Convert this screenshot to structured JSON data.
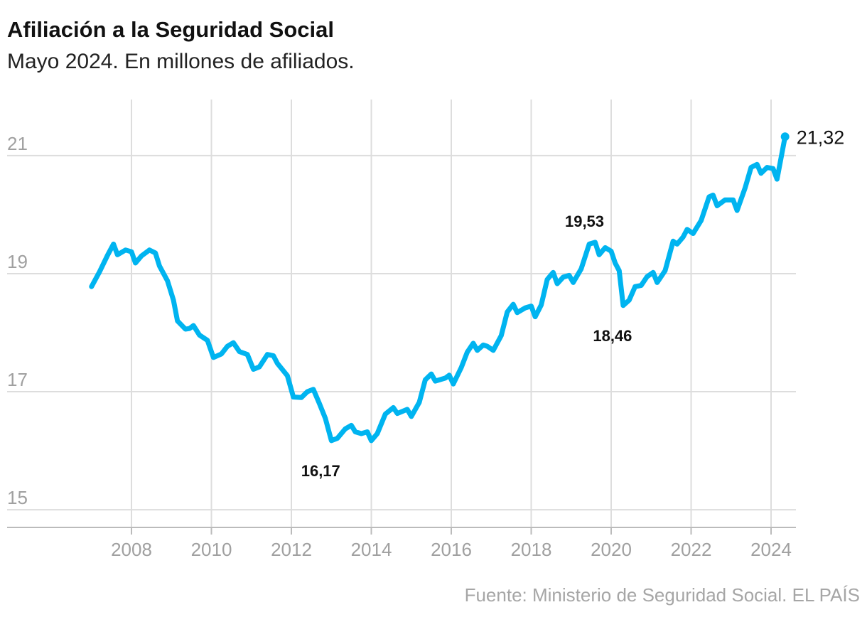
{
  "header": {
    "title": "Afiliación a la Seguridad Social",
    "subtitle": "Mayo 2024. En millones de afiliados."
  },
  "source": "Fuente: Ministerio de Seguridad Social. EL PAÍS",
  "colors": {
    "line": "#00b4f0",
    "grid": "#dddddd",
    "axis": "#bbbbbb",
    "tick_text": "#a0a0a0",
    "annotation_text": "#111111"
  },
  "chart_data": {
    "type": "line",
    "title": "Afiliación a la Seguridad Social",
    "subtitle": "Mayo 2024. En millones de afiliados.",
    "xlabel": "",
    "ylabel": "",
    "xlim": [
      2006.3,
      2024.7
    ],
    "ylim": [
      14.7,
      21.95
    ],
    "x_ticks": [
      2008,
      2010,
      2012,
      2014,
      2016,
      2018,
      2020,
      2022,
      2024
    ],
    "x_tick_labels": [
      "2008",
      "2010",
      "2012",
      "2014",
      "2016",
      "2018",
      "2020",
      "2022",
      "2024"
    ],
    "y_ticks": [
      15,
      17,
      19,
      21
    ],
    "y_tick_labels": [
      "15",
      "17",
      "19",
      "21"
    ],
    "grid": true,
    "legend": "none",
    "series": [
      {
        "points": [
          [
            2007.0,
            18.78
          ],
          [
            2007.2,
            19.03
          ],
          [
            2007.4,
            19.31
          ],
          [
            2007.55,
            19.5
          ],
          [
            2007.65,
            19.32
          ],
          [
            2007.85,
            19.4
          ],
          [
            2008.0,
            19.37
          ],
          [
            2008.1,
            19.18
          ],
          [
            2008.25,
            19.3
          ],
          [
            2008.45,
            19.4
          ],
          [
            2008.6,
            19.35
          ],
          [
            2008.7,
            19.13
          ],
          [
            2008.9,
            18.88
          ],
          [
            2009.05,
            18.55
          ],
          [
            2009.15,
            18.2
          ],
          [
            2009.35,
            18.06
          ],
          [
            2009.45,
            18.07
          ],
          [
            2009.55,
            18.12
          ],
          [
            2009.7,
            17.96
          ],
          [
            2009.9,
            17.87
          ],
          [
            2010.05,
            17.58
          ],
          [
            2010.25,
            17.64
          ],
          [
            2010.4,
            17.77
          ],
          [
            2010.55,
            17.83
          ],
          [
            2010.7,
            17.68
          ],
          [
            2010.9,
            17.63
          ],
          [
            2011.05,
            17.38
          ],
          [
            2011.2,
            17.42
          ],
          [
            2011.4,
            17.63
          ],
          [
            2011.55,
            17.61
          ],
          [
            2011.65,
            17.48
          ],
          [
            2011.9,
            17.27
          ],
          [
            2012.05,
            16.91
          ],
          [
            2012.25,
            16.9
          ],
          [
            2012.4,
            17.0
          ],
          [
            2012.55,
            17.04
          ],
          [
            2012.7,
            16.8
          ],
          [
            2012.85,
            16.55
          ],
          [
            2013.0,
            16.17
          ],
          [
            2013.15,
            16.21
          ],
          [
            2013.35,
            16.37
          ],
          [
            2013.5,
            16.43
          ],
          [
            2013.6,
            16.32
          ],
          [
            2013.75,
            16.29
          ],
          [
            2013.9,
            16.32
          ],
          [
            2014.0,
            16.17
          ],
          [
            2014.15,
            16.29
          ],
          [
            2014.35,
            16.62
          ],
          [
            2014.55,
            16.73
          ],
          [
            2014.65,
            16.63
          ],
          [
            2014.9,
            16.7
          ],
          [
            2015.0,
            16.58
          ],
          [
            2015.2,
            16.82
          ],
          [
            2015.35,
            17.2
          ],
          [
            2015.5,
            17.3
          ],
          [
            2015.6,
            17.18
          ],
          [
            2015.85,
            17.23
          ],
          [
            2015.95,
            17.28
          ],
          [
            2016.05,
            17.13
          ],
          [
            2016.25,
            17.41
          ],
          [
            2016.4,
            17.67
          ],
          [
            2016.55,
            17.82
          ],
          [
            2016.65,
            17.7
          ],
          [
            2016.8,
            17.79
          ],
          [
            2016.9,
            17.77
          ],
          [
            2017.05,
            17.7
          ],
          [
            2017.25,
            17.95
          ],
          [
            2017.4,
            18.35
          ],
          [
            2017.55,
            18.48
          ],
          [
            2017.65,
            18.34
          ],
          [
            2017.85,
            18.42
          ],
          [
            2018.0,
            18.45
          ],
          [
            2018.1,
            18.27
          ],
          [
            2018.25,
            18.47
          ],
          [
            2018.4,
            18.9
          ],
          [
            2018.55,
            19.02
          ],
          [
            2018.65,
            18.83
          ],
          [
            2018.8,
            18.94
          ],
          [
            2018.95,
            18.97
          ],
          [
            2019.05,
            18.85
          ],
          [
            2019.25,
            19.08
          ],
          [
            2019.45,
            19.5
          ],
          [
            2019.6,
            19.53
          ],
          [
            2019.7,
            19.32
          ],
          [
            2019.85,
            19.44
          ],
          [
            2020.0,
            19.38
          ],
          [
            2020.1,
            19.18
          ],
          [
            2020.2,
            19.05
          ],
          [
            2020.3,
            18.46
          ],
          [
            2020.45,
            18.55
          ],
          [
            2020.6,
            18.78
          ],
          [
            2020.75,
            18.8
          ],
          [
            2020.9,
            18.95
          ],
          [
            2021.05,
            19.02
          ],
          [
            2021.15,
            18.85
          ],
          [
            2021.35,
            19.05
          ],
          [
            2021.55,
            19.55
          ],
          [
            2021.65,
            19.5
          ],
          [
            2021.8,
            19.62
          ],
          [
            2021.9,
            19.75
          ],
          [
            2022.05,
            19.68
          ],
          [
            2022.25,
            19.9
          ],
          [
            2022.45,
            20.3
          ],
          [
            2022.55,
            20.33
          ],
          [
            2022.65,
            20.15
          ],
          [
            2022.85,
            20.25
          ],
          [
            2023.05,
            20.25
          ],
          [
            2023.15,
            20.07
          ],
          [
            2023.35,
            20.45
          ],
          [
            2023.5,
            20.8
          ],
          [
            2023.65,
            20.85
          ],
          [
            2023.75,
            20.7
          ],
          [
            2023.9,
            20.8
          ],
          [
            2024.05,
            20.78
          ],
          [
            2024.15,
            20.6
          ],
          [
            2024.35,
            21.32
          ]
        ]
      }
    ],
    "annotations": [
      {
        "label": "19,53",
        "x": 2019.6,
        "y": 19.53,
        "position": "above"
      },
      {
        "label": "16,17",
        "x": 2013.0,
        "y": 16.17,
        "position": "below"
      },
      {
        "label": "18,46",
        "x": 2020.3,
        "y": 18.46,
        "position": "below"
      }
    ],
    "end_label": {
      "label": "21,32",
      "x": 2024.35,
      "y": 21.32
    }
  }
}
